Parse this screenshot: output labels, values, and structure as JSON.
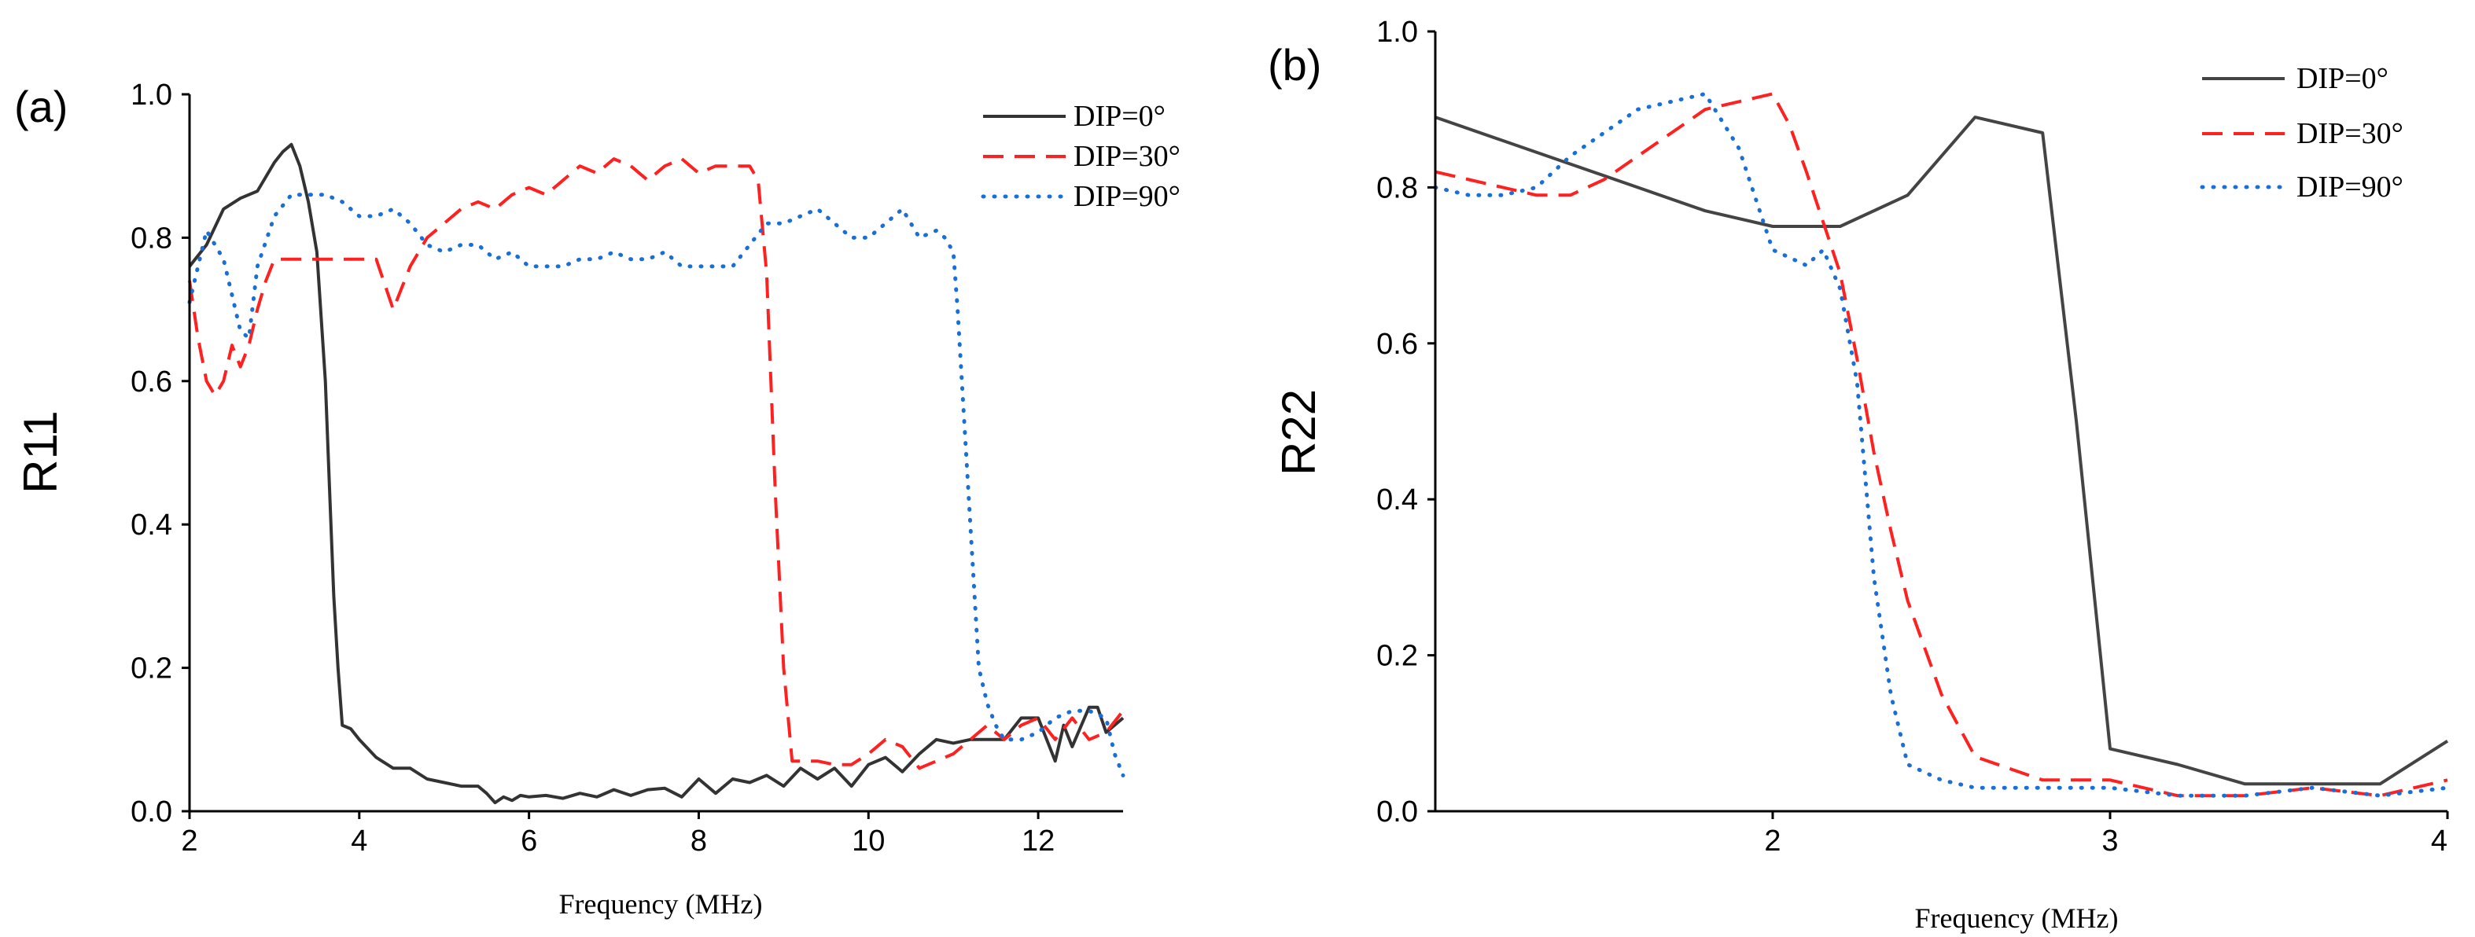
{
  "chart_data": [
    {
      "type": "line",
      "panel_label": "(a)",
      "xlabel": "Frequency (MHz)",
      "ylabel": "R11",
      "xlim": [
        2,
        13
      ],
      "ylim": [
        0.0,
        1.0
      ],
      "xticks": [
        2,
        4,
        6,
        8,
        10,
        12
      ],
      "xtick_labels": [
        "2",
        "4",
        "6",
        "8",
        "10",
        "12"
      ],
      "yticks": [
        0.0,
        0.2,
        0.4,
        0.6,
        0.8,
        1.0
      ],
      "ytick_labels": [
        "0.0",
        "0.2",
        "0.4",
        "0.6",
        "0.8",
        "1.0"
      ],
      "grid": false,
      "legend_position": "top-right",
      "series": [
        {
          "name": "DIP=0°",
          "style": "solid",
          "color": "#333333",
          "x": [
            2.0,
            2.2,
            2.4,
            2.6,
            2.8,
            3.0,
            3.1,
            3.2,
            3.3,
            3.4,
            3.5,
            3.6,
            3.65,
            3.7,
            3.75,
            3.8,
            3.9,
            4.0,
            4.2,
            4.4,
            4.6,
            4.8,
            5.0,
            5.2,
            5.4,
            5.5,
            5.6,
            5.7,
            5.8,
            5.9,
            6.0,
            6.2,
            6.4,
            6.6,
            6.8,
            7.0,
            7.2,
            7.4,
            7.6,
            7.8,
            8.0,
            8.2,
            8.4,
            8.6,
            8.8,
            9.0,
            9.2,
            9.4,
            9.6,
            9.8,
            10.0,
            10.2,
            10.4,
            10.6,
            10.8,
            11.0,
            11.2,
            11.4,
            11.6,
            11.8,
            12.0,
            12.2,
            12.3,
            12.4,
            12.6,
            12.7,
            12.8,
            12.9,
            13.0
          ],
          "values": [
            0.76,
            0.79,
            0.84,
            0.855,
            0.865,
            0.905,
            0.92,
            0.93,
            0.9,
            0.85,
            0.78,
            0.6,
            0.45,
            0.3,
            0.2,
            0.12,
            0.115,
            0.1,
            0.075,
            0.06,
            0.06,
            0.045,
            0.04,
            0.035,
            0.035,
            0.025,
            0.012,
            0.02,
            0.015,
            0.022,
            0.02,
            0.022,
            0.018,
            0.025,
            0.02,
            0.03,
            0.022,
            0.03,
            0.032,
            0.02,
            0.045,
            0.025,
            0.045,
            0.04,
            0.05,
            0.035,
            0.06,
            0.045,
            0.06,
            0.035,
            0.065,
            0.075,
            0.055,
            0.08,
            0.1,
            0.095,
            0.1,
            0.1,
            0.1,
            0.13,
            0.13,
            0.07,
            0.12,
            0.09,
            0.145,
            0.145,
            0.11,
            0.12,
            0.13
          ]
        },
        {
          "name": "DIP=30°",
          "style": "dashed",
          "color": "#ff2020",
          "x": [
            2.0,
            2.1,
            2.2,
            2.3,
            2.4,
            2.5,
            2.6,
            2.7,
            2.8,
            2.9,
            3.0,
            3.2,
            3.4,
            3.6,
            3.8,
            4.0,
            4.2,
            4.4,
            4.6,
            4.8,
            5.0,
            5.2,
            5.4,
            5.6,
            5.8,
            6.0,
            6.2,
            6.4,
            6.6,
            6.8,
            7.0,
            7.2,
            7.4,
            7.6,
            7.8,
            8.0,
            8.2,
            8.4,
            8.6,
            8.7,
            8.8,
            8.9,
            9.0,
            9.1,
            9.2,
            9.4,
            9.6,
            9.8,
            10.0,
            10.2,
            10.4,
            10.6,
            10.8,
            11.0,
            11.2,
            11.4,
            11.6,
            11.8,
            12.0,
            12.2,
            12.4,
            12.6,
            12.8,
            13.0
          ],
          "values": [
            0.74,
            0.66,
            0.6,
            0.58,
            0.6,
            0.65,
            0.62,
            0.65,
            0.7,
            0.74,
            0.77,
            0.77,
            0.77,
            0.77,
            0.77,
            0.77,
            0.77,
            0.7,
            0.76,
            0.8,
            0.82,
            0.84,
            0.85,
            0.84,
            0.86,
            0.87,
            0.86,
            0.88,
            0.9,
            0.89,
            0.91,
            0.9,
            0.88,
            0.9,
            0.91,
            0.89,
            0.9,
            0.9,
            0.9,
            0.88,
            0.75,
            0.45,
            0.2,
            0.07,
            0.07,
            0.07,
            0.065,
            0.065,
            0.08,
            0.1,
            0.09,
            0.06,
            0.07,
            0.08,
            0.1,
            0.12,
            0.1,
            0.12,
            0.13,
            0.1,
            0.13,
            0.1,
            0.11,
            0.14
          ]
        },
        {
          "name": "DIP=90°",
          "style": "dotted",
          "color": "#1a6fd6",
          "x": [
            2.0,
            2.2,
            2.4,
            2.5,
            2.6,
            2.7,
            2.8,
            3.0,
            3.2,
            3.4,
            3.6,
            3.8,
            4.0,
            4.2,
            4.4,
            4.6,
            4.8,
            5.0,
            5.2,
            5.4,
            5.6,
            5.8,
            6.0,
            6.2,
            6.4,
            6.6,
            6.8,
            7.0,
            7.2,
            7.4,
            7.6,
            7.8,
            8.0,
            8.2,
            8.4,
            8.6,
            8.8,
            9.0,
            9.2,
            9.4,
            9.6,
            9.8,
            10.0,
            10.2,
            10.4,
            10.6,
            10.8,
            10.9,
            11.0,
            11.05,
            11.1,
            11.15,
            11.2,
            11.25,
            11.3,
            11.4,
            11.5,
            11.6,
            11.8,
            12.0,
            12.2,
            12.4,
            12.6,
            12.8,
            12.9,
            13.0
          ],
          "values": [
            0.71,
            0.81,
            0.77,
            0.72,
            0.67,
            0.66,
            0.76,
            0.83,
            0.86,
            0.86,
            0.86,
            0.85,
            0.83,
            0.83,
            0.84,
            0.82,
            0.79,
            0.78,
            0.79,
            0.79,
            0.77,
            0.78,
            0.76,
            0.76,
            0.76,
            0.77,
            0.77,
            0.78,
            0.77,
            0.77,
            0.78,
            0.76,
            0.76,
            0.76,
            0.76,
            0.79,
            0.82,
            0.82,
            0.83,
            0.84,
            0.82,
            0.8,
            0.8,
            0.82,
            0.84,
            0.8,
            0.81,
            0.8,
            0.78,
            0.7,
            0.6,
            0.5,
            0.4,
            0.3,
            0.2,
            0.15,
            0.12,
            0.1,
            0.1,
            0.11,
            0.13,
            0.14,
            0.14,
            0.13,
            0.08,
            0.05
          ]
        }
      ]
    },
    {
      "type": "line",
      "panel_label": "(b)",
      "xlabel": "Frequency (MHz)",
      "ylabel": "R22",
      "xlim": [
        1,
        4
      ],
      "ylim": [
        0.0,
        1.0
      ],
      "xticks": [
        2,
        3,
        4
      ],
      "xtick_labels": [
        "2",
        "3",
        "4"
      ],
      "yticks": [
        0.0,
        0.2,
        0.4,
        0.6,
        0.8,
        1.0
      ],
      "ytick_labels": [
        "0.0",
        "0.2",
        "0.4",
        "0.6",
        "0.8",
        "1.0"
      ],
      "grid": false,
      "legend_position": "top-right",
      "series": [
        {
          "name": "DIP=0°",
          "style": "solid",
          "color": "#444444",
          "x": [
            1.0,
            1.2,
            1.4,
            1.6,
            1.8,
            2.0,
            2.2,
            2.4,
            2.6,
            2.8,
            2.9,
            3.0,
            3.2,
            3.4,
            3.6,
            3.8,
            4.0
          ],
          "values": [
            0.89,
            0.86,
            0.83,
            0.8,
            0.77,
            0.75,
            0.75,
            0.79,
            0.89,
            0.87,
            0.5,
            0.08,
            0.06,
            0.035,
            0.035,
            0.035,
            0.09
          ]
        },
        {
          "name": "DIP=30°",
          "style": "dashed",
          "color": "#ff2020",
          "x": [
            1.0,
            1.1,
            1.2,
            1.3,
            1.4,
            1.5,
            1.6,
            1.7,
            1.8,
            1.9,
            2.0,
            2.05,
            2.1,
            2.2,
            2.25,
            2.3,
            2.35,
            2.4,
            2.5,
            2.6,
            2.8,
            3.0,
            3.2,
            3.4,
            3.6,
            3.8,
            4.0
          ],
          "values": [
            0.82,
            0.81,
            0.8,
            0.79,
            0.79,
            0.81,
            0.84,
            0.87,
            0.9,
            0.91,
            0.92,
            0.88,
            0.82,
            0.69,
            0.58,
            0.46,
            0.36,
            0.27,
            0.15,
            0.07,
            0.04,
            0.04,
            0.02,
            0.02,
            0.03,
            0.02,
            0.04
          ]
        },
        {
          "name": "DIP=90°",
          "style": "dotted",
          "color": "#1a6fd6",
          "x": [
            1.0,
            1.1,
            1.2,
            1.3,
            1.4,
            1.5,
            1.6,
            1.7,
            1.8,
            1.9,
            2.0,
            2.1,
            2.15,
            2.2,
            2.25,
            2.3,
            2.35,
            2.4,
            2.5,
            2.6,
            2.8,
            3.0,
            3.2,
            3.4,
            3.6,
            3.8,
            4.0
          ],
          "values": [
            0.8,
            0.79,
            0.79,
            0.8,
            0.84,
            0.87,
            0.9,
            0.91,
            0.92,
            0.85,
            0.72,
            0.7,
            0.72,
            0.67,
            0.55,
            0.3,
            0.15,
            0.06,
            0.04,
            0.03,
            0.03,
            0.03,
            0.02,
            0.02,
            0.03,
            0.02,
            0.03
          ]
        }
      ]
    }
  ]
}
